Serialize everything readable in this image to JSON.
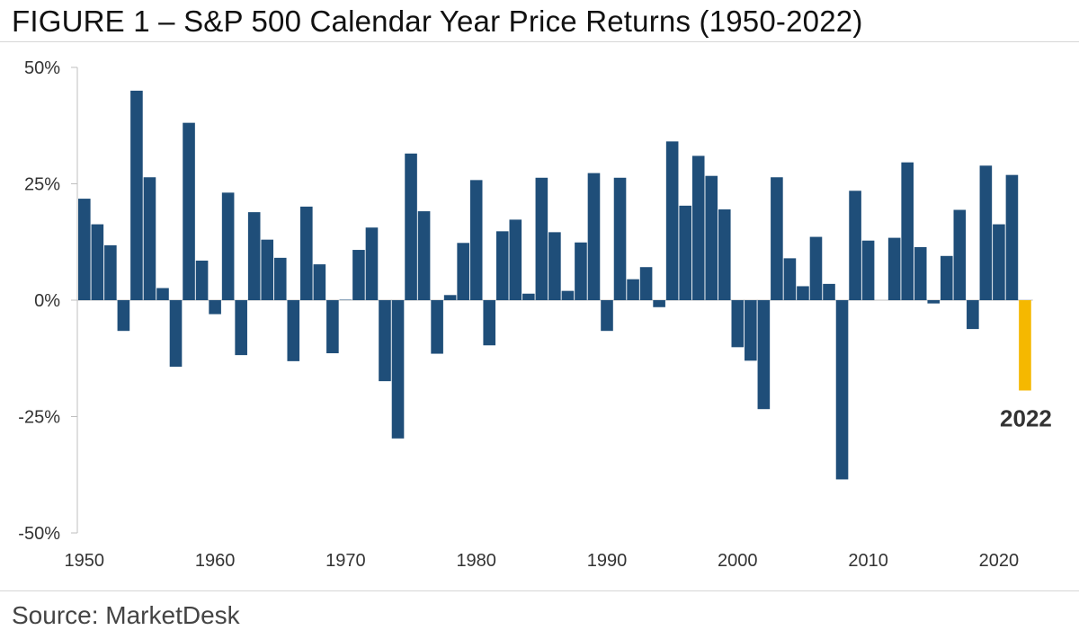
{
  "figure": {
    "title": "FIGURE 1 – S&P 500 Calendar Year Price Returns (1950-2022)",
    "source": "Source: MarketDesk"
  },
  "colors": {
    "bar": "#1f4e79",
    "highlight": "#f5b800",
    "axis": "#bfbfbf",
    "text": "#333333"
  },
  "chart_data": {
    "type": "bar",
    "title": "FIGURE 1 – S&P 500 Calendar Year Price Returns (1950-2022)",
    "xlabel": "",
    "ylabel": "",
    "ylim": [
      -50,
      50
    ],
    "y_ticks": [
      50,
      25,
      0,
      -25,
      -50
    ],
    "y_tick_labels": [
      "50%",
      "25%",
      "0%",
      "-25%",
      "-50%"
    ],
    "x_tick_labels": [
      "1950",
      "1960",
      "1970",
      "1980",
      "1990",
      "2000",
      "2010",
      "2020"
    ],
    "x_tick_years": [
      1950,
      1960,
      1970,
      1980,
      1990,
      2000,
      2010,
      2020
    ],
    "grid": false,
    "highlight_label": "2022",
    "highlight_year": 2022,
    "categories": [
      1950,
      1951,
      1952,
      1953,
      1954,
      1955,
      1956,
      1957,
      1958,
      1959,
      1960,
      1961,
      1962,
      1963,
      1964,
      1965,
      1966,
      1967,
      1968,
      1969,
      1970,
      1971,
      1972,
      1973,
      1974,
      1975,
      1976,
      1977,
      1978,
      1979,
      1980,
      1981,
      1982,
      1983,
      1984,
      1985,
      1986,
      1987,
      1988,
      1989,
      1990,
      1991,
      1992,
      1993,
      1994,
      1995,
      1996,
      1997,
      1998,
      1999,
      2000,
      2001,
      2002,
      2003,
      2004,
      2005,
      2006,
      2007,
      2008,
      2009,
      2010,
      2011,
      2012,
      2013,
      2014,
      2015,
      2016,
      2017,
      2018,
      2019,
      2020,
      2021,
      2022
    ],
    "values": [
      21.8,
      16.3,
      11.8,
      -6.6,
      45.0,
      26.4,
      2.6,
      -14.3,
      38.1,
      8.5,
      -3.0,
      23.1,
      -11.8,
      18.9,
      13.0,
      9.1,
      -13.1,
      20.1,
      7.7,
      -11.4,
      0.1,
      10.8,
      15.6,
      -17.4,
      -29.7,
      31.5,
      19.1,
      -11.5,
      1.1,
      12.3,
      25.8,
      -9.7,
      14.8,
      17.3,
      1.4,
      26.3,
      14.6,
      2.0,
      12.4,
      27.3,
      -6.6,
      26.3,
      4.5,
      7.1,
      -1.5,
      34.1,
      20.3,
      31.0,
      26.7,
      19.5,
      -10.1,
      -13.0,
      -23.4,
      26.4,
      9.0,
      3.0,
      13.6,
      3.5,
      -38.5,
      23.5,
      12.8,
      0.0,
      13.4,
      29.6,
      11.4,
      -0.7,
      9.5,
      19.4,
      -6.2,
      28.9,
      16.3,
      26.9,
      -19.4
    ]
  }
}
